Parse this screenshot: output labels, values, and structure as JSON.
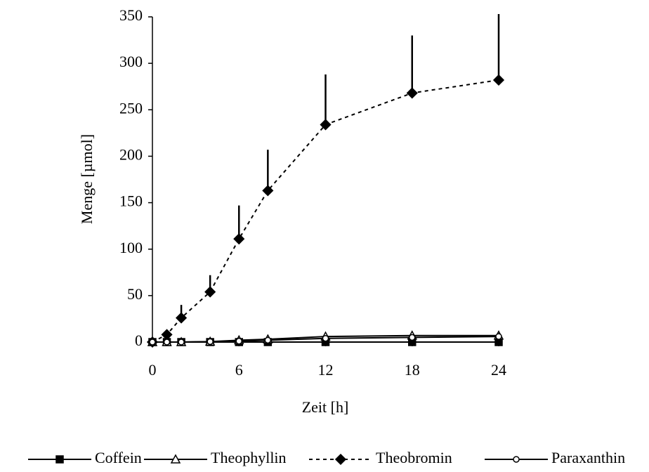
{
  "chart_data": {
    "type": "line",
    "x_label": "Zeit [h]",
    "y_label": "Menge [µmol]",
    "x": [
      0,
      1,
      2,
      4,
      6,
      8,
      12,
      18,
      24
    ],
    "xlim": [
      0,
      24
    ],
    "xticks": [
      0,
      6,
      12,
      18,
      24
    ],
    "ylim": [
      0,
      350
    ],
    "yticks": [
      0,
      50,
      100,
      150,
      200,
      250,
      300,
      350
    ],
    "series": [
      {
        "name": "Coffein",
        "color": "#000000",
        "marker": "square",
        "dashed": false,
        "values": [
          0,
          0,
          0,
          0,
          0,
          0,
          0,
          0,
          0
        ]
      },
      {
        "name": "Theophyllin",
        "color": "#000000",
        "marker": "triangle",
        "dashed": false,
        "values": [
          0,
          0,
          0,
          0.5,
          2,
          3,
          6,
          7,
          7
        ]
      },
      {
        "name": "Theobromin",
        "color": "#000000",
        "marker": "diamond",
        "dashed": true,
        "values": [
          0,
          8,
          26,
          54,
          111,
          163,
          234,
          268,
          282
        ],
        "errors": [
          0,
          2,
          14,
          18,
          36,
          44,
          54,
          62,
          71
        ]
      },
      {
        "name": "Paraxanthin",
        "color": "#000000",
        "marker": "circle",
        "dashed": false,
        "values": [
          0,
          0,
          0,
          0.5,
          1,
          2,
          4,
          5,
          6
        ]
      }
    ]
  }
}
